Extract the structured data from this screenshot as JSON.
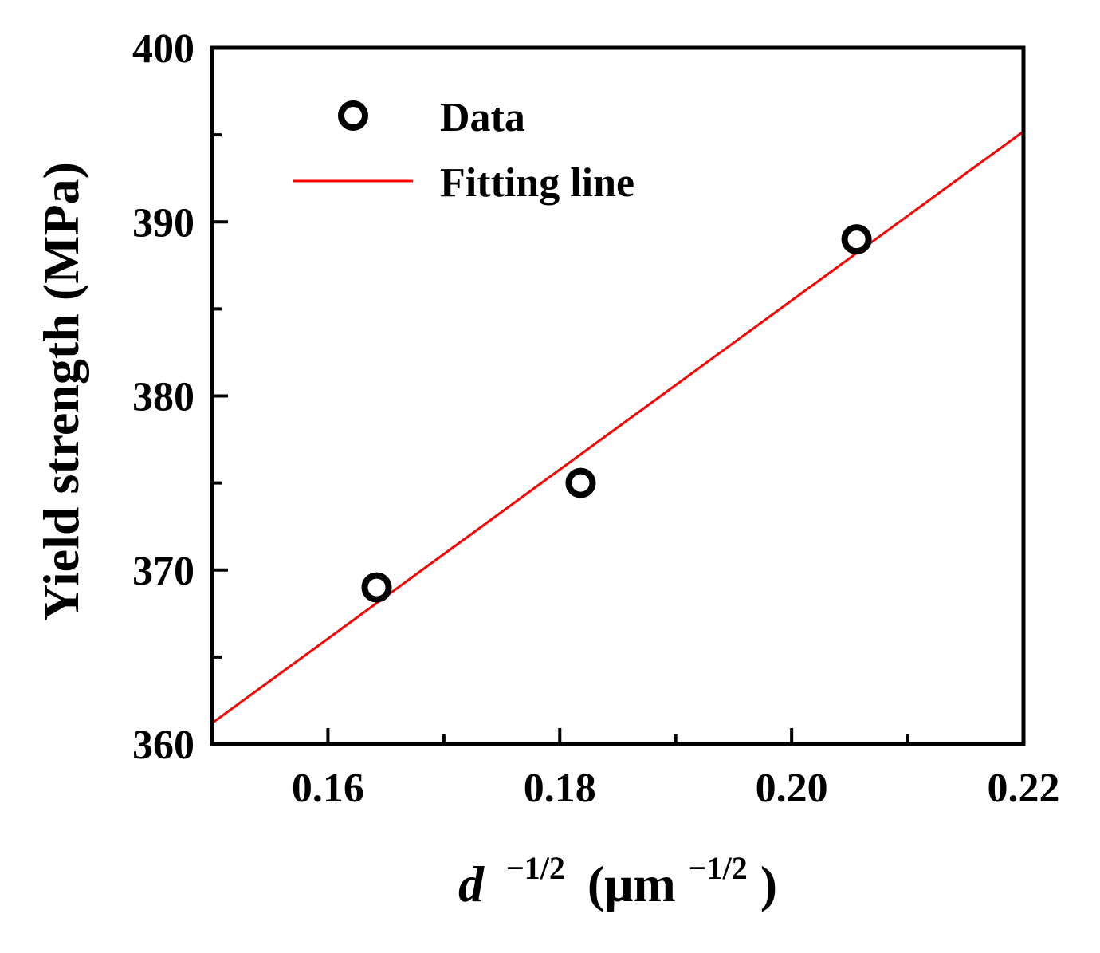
{
  "chart_data": {
    "type": "scatter",
    "title": "",
    "xlabel": {
      "base": "d",
      "base_exponent": "−1/2",
      "unit_prefix": "(μm",
      "unit_exponent": "−1/2",
      "unit_suffix": ")"
    },
    "ylabel": "Yield strength (MPa)",
    "xlim": [
      0.15,
      0.22
    ],
    "ylim": [
      360,
      400
    ],
    "x_ticks": [
      0.16,
      0.18,
      0.2,
      0.22
    ],
    "x_tick_labels": [
      "0.16",
      "0.18",
      "0.20",
      "0.22"
    ],
    "x_minor_ticks": [
      0.17,
      0.19,
      0.21
    ],
    "y_ticks": [
      360,
      370,
      380,
      390,
      400
    ],
    "y_tick_labels": [
      "360",
      "370",
      "380",
      "390",
      "400"
    ],
    "y_minor_ticks": [
      365,
      375,
      385,
      395
    ],
    "grid": false,
    "legend_position": "top-left",
    "series": [
      {
        "name": "Data",
        "kind": "scatter",
        "marker": "open-circle",
        "color": "#000000",
        "x": [
          0.1642,
          0.1818,
          0.2056
        ],
        "y": [
          369,
          375,
          389
        ]
      },
      {
        "name": "Fitting line",
        "kind": "line",
        "color": "#ff0000",
        "x": [
          0.15,
          0.22
        ],
        "y": [
          361.2,
          395.2
        ]
      }
    ]
  }
}
